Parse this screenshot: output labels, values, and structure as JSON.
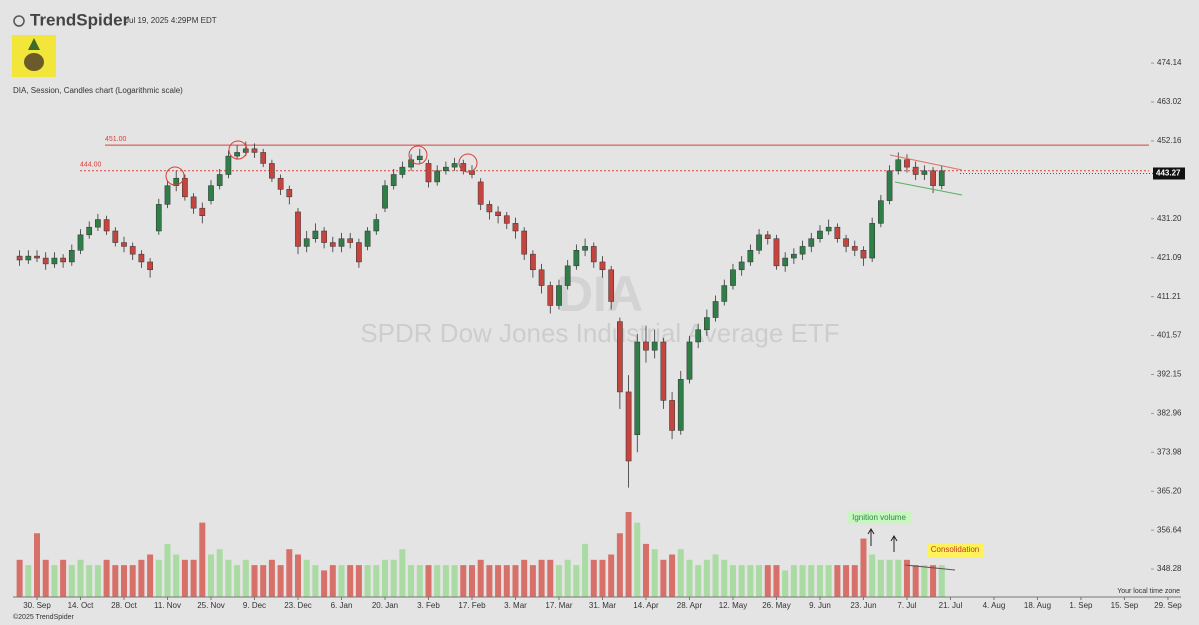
{
  "brand": "TrendSpider",
  "timestamp": "Jul 19, 2025 4:29PM EDT",
  "footer": "©2025 TrendSpider",
  "timezone_note": "Your local time zone",
  "chart_data": {
    "type": "candlestick",
    "title": "DIA, Session, Candles chart (Logarithmic scale)",
    "watermark_symbol": "DIA",
    "watermark_name": "SPDR Dow Jones Industrial Average ETF",
    "log_scale": true,
    "ylim": [
      342.4,
      483.8
    ],
    "yticks": [
      474.14,
      463.02,
      452.16,
      {
        "value": 431.2,
        "label": "431.20"
      },
      421.09,
      411.21,
      401.57,
      392.15,
      382.96,
      373.98,
      {
        "value": 365.2,
        "label": "365.20"
      },
      356.64,
      348.28
    ],
    "last_price": 443.27,
    "price_lines": [
      {
        "value": 451,
        "label": "451.00",
        "color": "#d9403a",
        "style": "solid"
      },
      {
        "value": 444,
        "label": "444.00",
        "color": "#d9403a",
        "style": "dotted"
      }
    ],
    "xlim": [
      -0.76,
      133.5
    ],
    "xticks": [
      {
        "value": 2,
        "label": "30. Sep"
      },
      {
        "value": 7,
        "label": "14. Oct"
      },
      {
        "value": 12,
        "label": "28. Oct"
      },
      {
        "value": 17,
        "label": "11. Nov"
      },
      {
        "value": 22,
        "label": "25. Nov"
      },
      {
        "value": 27,
        "label": "9. Dec"
      },
      {
        "value": 32,
        "label": "23. Dec"
      },
      {
        "value": 37,
        "label": "6. Jan"
      },
      {
        "value": 42,
        "label": "20. Jan"
      },
      {
        "value": 47,
        "label": "3. Feb"
      },
      {
        "value": 52,
        "label": "17. Feb"
      },
      {
        "value": 57,
        "label": "3. Mar"
      },
      {
        "value": 62,
        "label": "17. Mar"
      },
      {
        "value": 67,
        "label": "31. Mar"
      },
      {
        "value": 72,
        "label": "14. Apr"
      },
      {
        "value": 77,
        "label": "28. Apr"
      },
      {
        "value": 82,
        "label": "12. May"
      },
      {
        "value": 87,
        "label": "26. May"
      },
      {
        "value": 92,
        "label": "9. Jun"
      },
      {
        "value": 97,
        "label": "23. Jun"
      },
      {
        "value": 102,
        "label": "7. Jul"
      },
      {
        "value": 107,
        "label": "21. Jul"
      },
      {
        "value": 112,
        "label": "4. Aug"
      },
      {
        "value": 117,
        "label": "18. Aug"
      },
      {
        "value": 122,
        "label": "1. Sep"
      },
      {
        "value": 127,
        "label": "15. Sep"
      },
      {
        "value": 132,
        "label": "29. Sep"
      }
    ],
    "up_color": "#2f7d47",
    "down_color": "#c4453f",
    "volume_up_color": "#a9dba2",
    "volume_down_color": "#d8706a",
    "open": [
      421.5,
      420.5,
      421.5,
      421,
      419.5,
      421,
      420,
      423,
      427,
      429,
      431,
      428,
      425,
      424,
      422,
      420,
      428,
      435,
      440,
      442,
      437,
      434,
      436,
      440,
      443,
      448,
      449,
      450,
      449,
      446,
      442,
      439,
      433,
      424,
      426,
      428,
      425,
      424,
      426,
      425,
      424,
      428,
      434,
      440,
      443,
      445,
      447,
      446,
      441,
      444,
      445,
      446,
      444,
      441,
      435,
      433,
      432,
      430,
      428,
      422,
      418,
      414,
      409,
      414,
      419,
      423,
      424,
      420,
      418,
      405,
      388,
      378,
      400,
      398,
      400,
      386,
      379,
      391,
      400,
      403,
      406,
      410,
      414,
      418,
      420,
      423,
      427,
      426,
      419,
      421,
      422,
      424,
      426,
      428,
      429,
      426,
      424,
      423,
      421,
      430,
      436,
      444,
      447,
      445,
      443,
      444,
      440
    ],
    "high": [
      423,
      423,
      423,
      422.5,
      422.5,
      422,
      424.5,
      428.5,
      430.5,
      432.5,
      432,
      429,
      426.5,
      425,
      423,
      421,
      436.5,
      441.5,
      444,
      443,
      438,
      435.5,
      441.5,
      444.5,
      449.5,
      451,
      452,
      451.5,
      450,
      447,
      443,
      440,
      434,
      428,
      430,
      429,
      426.5,
      427.5,
      427.5,
      426,
      429,
      432.5,
      441.5,
      444.5,
      446.5,
      448.5,
      450,
      447,
      445.5,
      446.5,
      447.5,
      447,
      445.5,
      442,
      436,
      434.5,
      433,
      431.5,
      429,
      423,
      419.5,
      415,
      415.5,
      420.5,
      424.5,
      426,
      425,
      421.5,
      419,
      406,
      392,
      402,
      404,
      403,
      401,
      388,
      393,
      401.5,
      404.5,
      408,
      411.5,
      415.5,
      419.5,
      421.5,
      424.5,
      428.5,
      428,
      427,
      422.5,
      423.5,
      425.5,
      427.5,
      429.5,
      431,
      430,
      427,
      425.5,
      424,
      431.5,
      437.5,
      445.5,
      449,
      448.5,
      446.5,
      445.5,
      445,
      445.5
    ],
    "low": [
      419,
      419.5,
      420,
      418,
      418.5,
      418.5,
      419,
      422,
      426,
      428,
      427,
      424,
      422.5,
      420.5,
      418.5,
      416,
      427,
      434,
      438.5,
      436,
      432.5,
      430,
      435,
      439,
      442,
      447,
      448,
      447.5,
      445,
      441,
      437.5,
      435,
      422,
      422.5,
      425,
      423.5,
      422.5,
      422.5,
      423.5,
      418.5,
      423,
      427,
      433,
      439,
      442,
      444,
      446,
      439.5,
      440,
      443,
      444,
      443,
      442,
      433.5,
      431,
      430,
      428.5,
      426,
      420.5,
      416,
      412,
      407,
      408,
      413,
      418,
      421.5,
      418.5,
      416,
      408,
      384,
      366,
      374,
      395,
      396,
      384,
      377,
      378,
      390,
      398.5,
      401.5,
      405,
      409,
      413,
      416.5,
      419,
      422,
      424.5,
      418,
      417.5,
      419.5,
      420.5,
      422.5,
      425,
      427,
      425,
      422.5,
      421.5,
      419,
      420,
      429,
      435,
      443,
      443.5,
      441.5,
      441.5,
      438,
      439
    ],
    "close": [
      420.5,
      421.5,
      421,
      419.5,
      421,
      420,
      423,
      427,
      429,
      431,
      428,
      425,
      424,
      422,
      420,
      418,
      435,
      440,
      442,
      437,
      434,
      432,
      440,
      443,
      448,
      449,
      450,
      449,
      446,
      442,
      439,
      437,
      424,
      426,
      428,
      425,
      424,
      426,
      425,
      420,
      428,
      431,
      440,
      443,
      445,
      447,
      448,
      441,
      444,
      445,
      446,
      444,
      443,
      435,
      433,
      432,
      430,
      428,
      422,
      418,
      414,
      409,
      414,
      419,
      423,
      424,
      420,
      418,
      410,
      388,
      372,
      400,
      398,
      400,
      386,
      379,
      391,
      400,
      403,
      406,
      410,
      414,
      418,
      420,
      423,
      427,
      426,
      419,
      421,
      422,
      424,
      426,
      428,
      429,
      426,
      424,
      423,
      421,
      430,
      436,
      444,
      447,
      445,
      443,
      444,
      440,
      444
    ],
    "volume": [
      3.5,
      3,
      6,
      3.5,
      3,
      3.5,
      3,
      3.5,
      3,
      3,
      3.5,
      3,
      3,
      3,
      3.5,
      4,
      3.5,
      5,
      4,
      3.5,
      3.5,
      7,
      4,
      4.5,
      3.5,
      3,
      3.5,
      3,
      3,
      3.5,
      3,
      4.5,
      4,
      3.5,
      3,
      2.5,
      3,
      3,
      3,
      3,
      3,
      3,
      3.5,
      3.5,
      4.5,
      3,
      3,
      3,
      3,
      3,
      3,
      3,
      3,
      3.5,
      3,
      3,
      3,
      3,
      3.5,
      3,
      3.5,
      3.5,
      3,
      3.5,
      3,
      5,
      3.5,
      3.5,
      4,
      6,
      8,
      7,
      5,
      4.5,
      3.5,
      4,
      4.5,
      3.5,
      3,
      3.5,
      4,
      3.5,
      3,
      3,
      3,
      3,
      3,
      3,
      2.5,
      3,
      3,
      3,
      3,
      3,
      3,
      3,
      3,
      5.5,
      4,
      3.5,
      3.5,
      3.5,
      3.5,
      3,
      3,
      3,
      3
    ],
    "annotations": [
      "Ignition volume",
      "Consolidation"
    ]
  }
}
